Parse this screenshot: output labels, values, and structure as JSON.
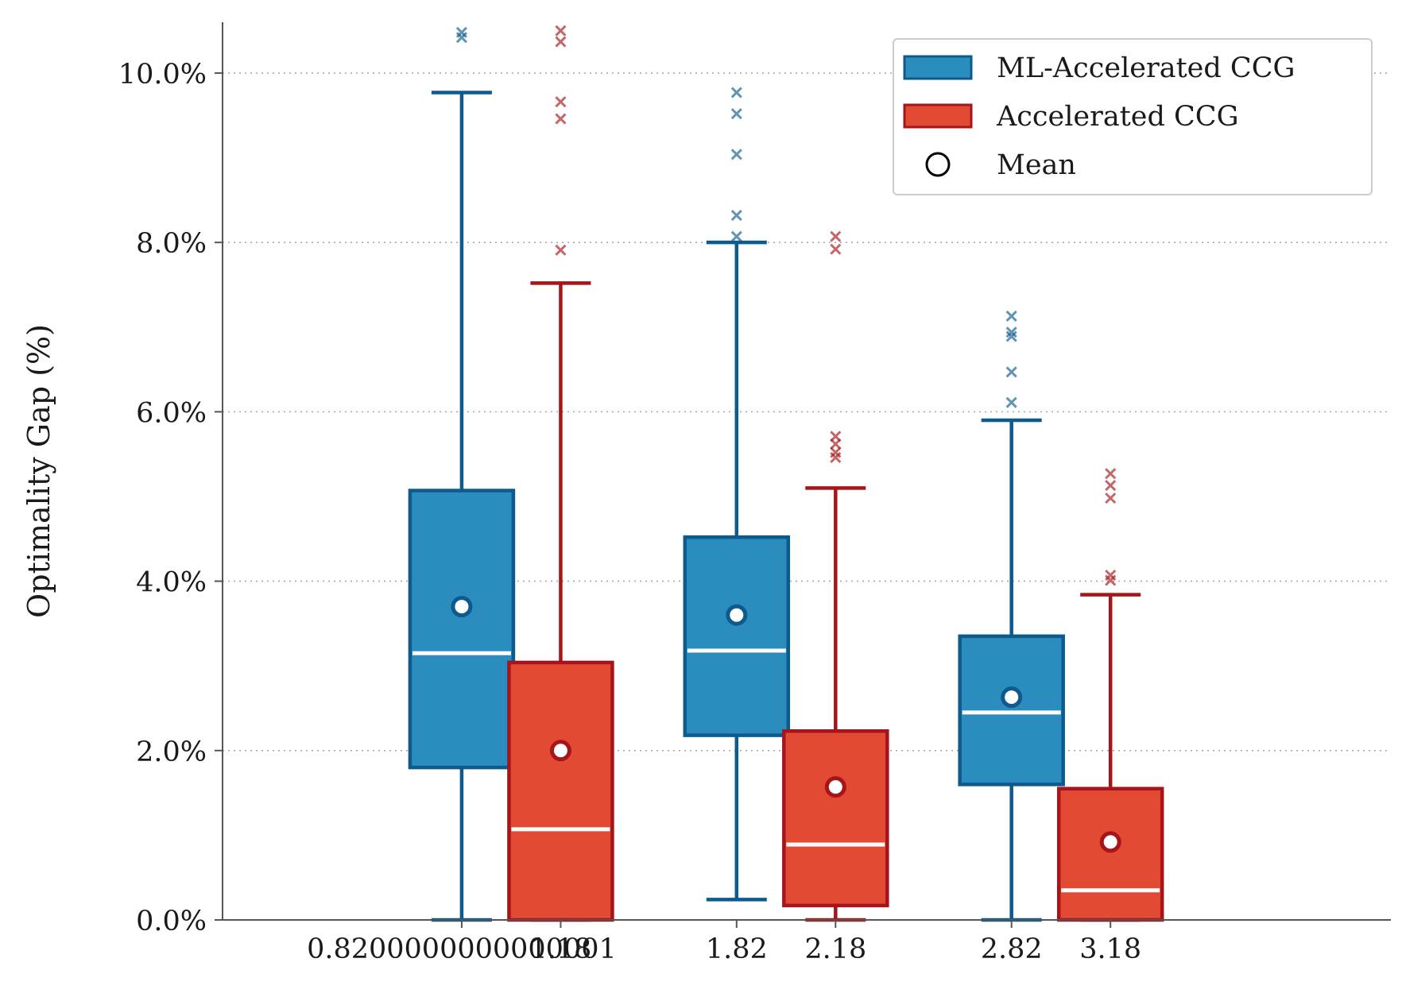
{
  "chart_data": {
    "type": "box",
    "ylabel": "Optimality Gap (%)",
    "xlabel": "",
    "title": "",
    "ylim": [
      0,
      10.6
    ],
    "xlim": [
      -0.05,
      4.2
    ],
    "yticks": [
      0,
      2,
      4,
      6,
      8,
      10
    ],
    "ytick_labels": [
      "0.0%",
      "2.0%",
      "4.0%",
      "6.0%",
      "8.0%",
      "10.0%"
    ],
    "xticks": [
      0.82,
      1.18,
      1.82,
      2.18,
      2.82,
      3.18
    ],
    "xtick_labels": [
      "0.8200000000000001",
      "1.18",
      "1.82",
      "2.18",
      "2.82",
      "3.18"
    ],
    "grid": "y-dotted",
    "legend_position": "top-right",
    "legend": [
      {
        "label": "ML-Accelerated CCG",
        "kind": "box",
        "fill": "#2b8cbe",
        "edge": "#0d5a8c"
      },
      {
        "label": "Accelerated CCG",
        "kind": "box",
        "fill": "#e34a33",
        "edge": "#a51519"
      },
      {
        "label": "Mean",
        "kind": "circle",
        "fill": "#ffffff",
        "edge": "#000000"
      }
    ],
    "series": [
      {
        "name": "ML-Accelerated CCG",
        "fill": "#2b8cbe",
        "edge": "#0d5a8c",
        "boxes": [
          {
            "x": 0.82,
            "q1": 1.8,
            "median": 3.15,
            "q3": 5.07,
            "whisker_low": 0.0,
            "whisker_high": 9.77,
            "mean": 3.7,
            "outliers": [
              10.42,
              10.48
            ]
          },
          {
            "x": 1.82,
            "q1": 2.18,
            "median": 3.18,
            "q3": 4.52,
            "whisker_low": 0.24,
            "whisker_high": 8.0,
            "mean": 3.6,
            "outliers": [
              8.07,
              8.32,
              9.04,
              9.52,
              9.77
            ]
          },
          {
            "x": 2.82,
            "q1": 1.6,
            "median": 2.45,
            "q3": 3.35,
            "whisker_low": 0.0,
            "whisker_high": 5.9,
            "mean": 2.63,
            "outliers": [
              6.11,
              6.47,
              6.89,
              6.94,
              7.13
            ]
          }
        ]
      },
      {
        "name": "Accelerated CCG",
        "fill": "#e34a33",
        "edge": "#a51519",
        "boxes": [
          {
            "x": 1.18,
            "q1": 0.0,
            "median": 1.07,
            "q3": 3.04,
            "whisker_low": 0.0,
            "whisker_high": 7.52,
            "mean": 2.0,
            "outliers": [
              7.91,
              9.46,
              9.66,
              10.37,
              10.5
            ]
          },
          {
            "x": 2.18,
            "q1": 0.17,
            "median": 0.89,
            "q3": 2.23,
            "whisker_low": 0.0,
            "whisker_high": 5.1,
            "mean": 1.57,
            "outliers": [
              5.46,
              5.52,
              5.62,
              5.71,
              7.92,
              8.07
            ]
          },
          {
            "x": 3.18,
            "q1": 0.0,
            "median": 0.35,
            "q3": 1.55,
            "whisker_low": 0.0,
            "whisker_high": 3.84,
            "mean": 0.92,
            "outliers": [
              4.01,
              4.07,
              4.98,
              5.13,
              5.27
            ]
          }
        ]
      }
    ]
  }
}
